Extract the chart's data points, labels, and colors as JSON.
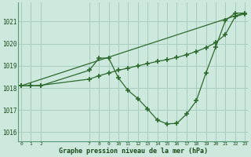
{
  "line1_x": [
    0,
    1,
    2,
    7,
    8,
    9,
    10,
    11,
    12,
    13,
    14,
    15,
    16,
    17,
    18,
    19,
    20,
    21,
    22,
    23
  ],
  "line1_y": [
    1018.1,
    1018.1,
    1018.1,
    1018.8,
    1019.35,
    1019.35,
    1018.45,
    1017.88,
    1017.52,
    1017.05,
    1016.55,
    1016.38,
    1016.4,
    1016.82,
    1017.42,
    1018.68,
    1019.85,
    1021.05,
    1021.38,
    1021.38
  ],
  "line2_x": [
    0,
    23
  ],
  "line2_y": [
    1018.1,
    1021.4
  ],
  "line3_x": [
    0,
    1,
    2,
    7,
    8,
    9,
    10,
    11,
    12,
    13,
    14,
    15,
    16,
    17,
    18,
    19,
    20,
    21,
    22,
    23
  ],
  "line3_y": [
    1018.1,
    1018.1,
    1018.12,
    1018.4,
    1018.55,
    1018.68,
    1018.8,
    1018.9,
    1019.0,
    1019.1,
    1019.2,
    1019.28,
    1019.38,
    1019.5,
    1019.65,
    1019.82,
    1020.05,
    1020.42,
    1021.22,
    1021.35
  ],
  "line_color": "#2d6a2d",
  "bg_color": "#cde8dc",
  "grid_color": "#a8ccbe",
  "ylim": [
    1015.6,
    1021.85
  ],
  "yticks": [
    1016,
    1017,
    1018,
    1019,
    1020,
    1021
  ],
  "xtick_positions": [
    0,
    1,
    2,
    7,
    8,
    9,
    10,
    11,
    12,
    13,
    14,
    15,
    16,
    17,
    18,
    19,
    20,
    21,
    22,
    23
  ],
  "xtick_labels": [
    "0",
    "1",
    "2",
    "7",
    "8",
    "9",
    "10",
    "11",
    "12",
    "13",
    "14",
    "15",
    "16",
    "17",
    "18",
    "19",
    "20",
    "21",
    "22",
    "23"
  ],
  "xlabel": "Graphe pression niveau de la mer (hPa)",
  "marker": "+",
  "marker_size": 4,
  "marker_lw": 1.2,
  "xlim": [
    -0.3,
    23.3
  ]
}
